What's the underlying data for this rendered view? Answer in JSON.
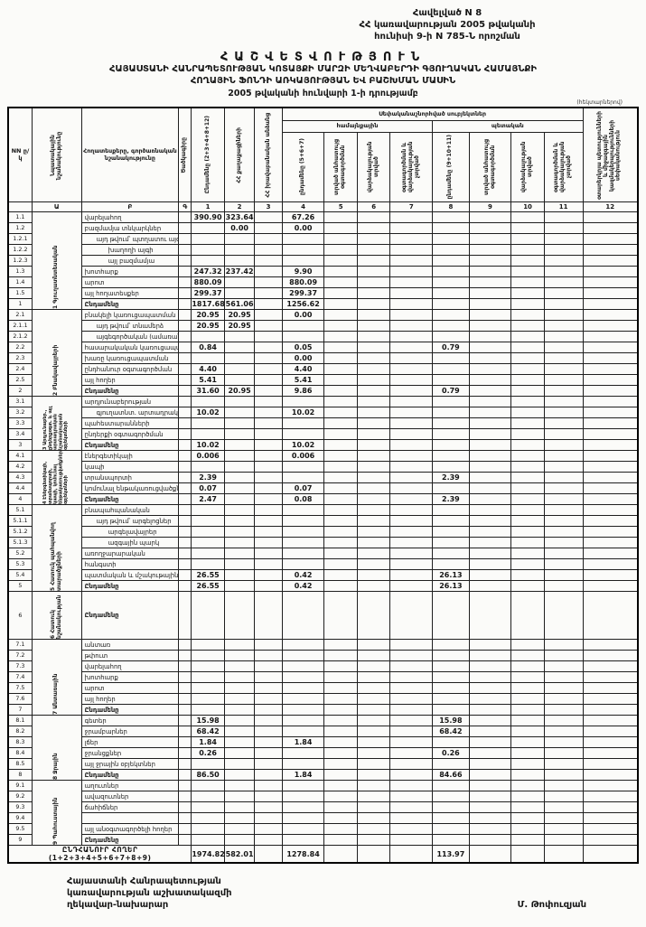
{
  "page": {
    "corner_note_line1": "Հավելված N 8",
    "corner_note_line2": "ՀՀ կառավարության 2005 թվականի",
    "corner_note_line3": "հունիսի 9-ի N 785-Ն որոշման",
    "title": "ՀԱՇՎԵՏՎՈՒԹՅՈՒՆ",
    "subtitle_line1": "ՀԱՅԱՍՏԱՆԻ ՀԱՆՐԱՊԵՏՈՒԹՅԱՆ ԿՈՏԱՅՔԻ ՄԱՐԶԻ ՄԵՂՎԱԲԵՐԴԻ ԳՅՈՒՂԱԿԱՆ ՀԱՄԱՅՆՔԻ",
    "subtitle_line2": "ՀՈՂԱՅԻՆ ՖՈՆԴԻ ԱՌԿԱՅՈՒԹՅԱՆ ԵՎ ԲԱՇԽՄԱՆ ՄԱՍԻՆ",
    "as_of": "2005 թվականի հունվարի 1-ի դրությամբ",
    "units_note": "(հեկտարներով)"
  },
  "table": {
    "header": {
      "nn": "NN ը/կ",
      "purpose": "Նպատակային նշանակությունը",
      "landtype": "Հողատեսքերը, գործառնական նշանակությունը",
      "code": "Ծածկագիրը",
      "c1": "Ընդամենը (2+3+4+8+12)",
      "c2": "ՀՀ քաղաքացիների",
      "c3": "ՀՀ իրավաբանական անձանց",
      "banner": "Սեփականաշնորհված սուբյեկտներ",
      "community": "համայնքային",
      "state": "պետական",
      "c4": "ընդամենը (5+6+7)",
      "c5": "տրված անհատույց օգտագործման",
      "c6": "վարձակալության տրված",
      "c7": "օգտագործման և վարձակալության չտրված",
      "c8": "ընդամենը (9+10+11)",
      "c9": "տրված անհատույց օգտագործման",
      "c10": "վարձակալության տրված",
      "c11": "օգտագործման և վարձակալության չտրված",
      "c12": "օտարերկրյա պետությունների և միջազգային կազմակերպությունների սեփականություն"
    },
    "letter_row": [
      "",
      "Ա",
      "Բ",
      "Գ",
      "1",
      "2",
      "3",
      "4",
      "5",
      "6",
      "7",
      "8",
      "9",
      "10",
      "11",
      "12"
    ],
    "sections": [
      {
        "label": "1 Գյուղատնտեսական",
        "rows": [
          {
            "n": "1.1",
            "label": "վարելահող",
            "v": [
              "390.90",
              "323.64",
              "",
              "67.26"
            ]
          },
          {
            "n": "1.2",
            "label": "բազմամյա տնկարկներ",
            "v": [
              "",
              "0.00",
              "",
              "0.00"
            ]
          },
          {
            "n": "1.2.1",
            "label": "այդ թվում՝ պտղատու այգի",
            "ind": 1
          },
          {
            "n": "1.2.2",
            "label": "խաղողի այգի",
            "ind": 2
          },
          {
            "n": "1.2.3",
            "label": "այլ բազմամյա",
            "ind": 2
          },
          {
            "n": "1.3",
            "label": "խոտհարք",
            "v": [
              "247.32",
              "237.42",
              "",
              "9.90"
            ]
          },
          {
            "n": "1.4",
            "label": "արոտ",
            "v": [
              "880.09",
              "",
              "",
              "880.09"
            ]
          },
          {
            "n": "1.5",
            "label": "այլ հողատեսքեր",
            "v": [
              "299.37",
              "",
              "",
              "299.37"
            ]
          },
          {
            "n": "1",
            "label": "Ընդամենը",
            "total": true,
            "v": [
              "1817.68",
              "561.06",
              "",
              "1256.62"
            ]
          }
        ]
      },
      {
        "label": "2 Բնակավայրերի",
        "rows": [
          {
            "n": "2.1",
            "label": "բնակելի կառուցապատման",
            "v": [
              "20.95",
              "20.95",
              "",
              "0.00"
            ]
          },
          {
            "n": "2.1.1",
            "label": "այդ թվում՝ տնամերձ",
            "ind": 1,
            "v": [
              "20.95",
              "20.95"
            ]
          },
          {
            "n": "2.1.2",
            "label": "այգեգործական (ամառանոց)",
            "ind": 1
          },
          {
            "n": "2.2",
            "label": "հասարակական կառուցապատման",
            "v": [
              "0.84",
              "",
              "",
              "0.05",
              "",
              "",
              "",
              "0.79"
            ]
          },
          {
            "n": "2.3",
            "label": "խառը կառուցապատման",
            "v": [
              "",
              "",
              "",
              "0.00"
            ]
          },
          {
            "n": "2.4",
            "label": "ընդհանուր օգտագործման",
            "v": [
              "4.40",
              "",
              "",
              "4.40"
            ]
          },
          {
            "n": "2.5",
            "label": "այլ հողեր",
            "v": [
              "5.41",
              "",
              "",
              "5.41"
            ]
          },
          {
            "n": "2",
            "label": "Ընդամենը",
            "total": true,
            "v": [
              "31.60",
              "20.95",
              "",
              "9.86",
              "",
              "",
              "",
              "0.79"
            ]
          }
        ]
      },
      {
        "label": "3 Արդյունաբեր., ընդերքօգտ. և այլ արտադրական նշանակության օբյեկտների",
        "rows": [
          {
            "n": "3.1",
            "label": "արդյունաբերության"
          },
          {
            "n": "3.2",
            "label": "գյուղատնտ. արտադրական",
            "ind": 1,
            "v": [
              "10.02",
              "",
              "",
              "10.02"
            ]
          },
          {
            "n": "3.3",
            "label": "պահեստարանների"
          },
          {
            "n": "3.4",
            "label": "ընդերքի օգտագործման"
          },
          {
            "n": "3",
            "label": "Ընդամենը",
            "total": true,
            "v": [
              "10.02",
              "",
              "",
              "10.02"
            ]
          }
        ]
      },
      {
        "label": "4 Էներգետիկայի, տրանսպորտի, կապի, կոմունալ ենթակառուցվածքների օբյեկտների",
        "rows": [
          {
            "n": "4.1",
            "label": "էներգետիկայի",
            "v": [
              "0.006",
              "",
              "",
              "0.006"
            ]
          },
          {
            "n": "4.2",
            "label": "կապի"
          },
          {
            "n": "4.3",
            "label": "տրանսպորտի",
            "v": [
              "2.39",
              "",
              "",
              "",
              "",
              "",
              "",
              "2.39"
            ]
          },
          {
            "n": "4.4",
            "label": "կոմունալ ենթակառուցվածքների",
            "v": [
              "0.07",
              "",
              "",
              "0.07"
            ]
          },
          {
            "n": "4",
            "label": "Ընդամենը",
            "total": true,
            "v": [
              "2.47",
              "",
              "",
              "0.08",
              "",
              "",
              "",
              "2.39"
            ]
          }
        ]
      },
      {
        "label": "5 Հատուկ պահպանվող տարածքների",
        "rows": [
          {
            "n": "5.1",
            "label": "բնապահպանական"
          },
          {
            "n": "5.1.1",
            "label": "այդ թվում՝ արգելոցներ",
            "ind": 1
          },
          {
            "n": "5.1.2",
            "label": "արգելավայրեր",
            "ind": 2
          },
          {
            "n": "5.1.3",
            "label": "ազգային պարկ",
            "ind": 2
          },
          {
            "n": "5.2",
            "label": "առողջարարական"
          },
          {
            "n": "5.3",
            "label": "հանգստի"
          },
          {
            "n": "5.4",
            "label": "պատմական և մշակութային",
            "v": [
              "26.55",
              "",
              "",
              "0.42",
              "",
              "",
              "",
              "26.13"
            ]
          },
          {
            "n": "5",
            "label": "Ընդամենը",
            "total": true,
            "v": [
              "26.55",
              "",
              "",
              "0.42",
              "",
              "",
              "",
              "26.13"
            ]
          }
        ]
      },
      {
        "label": "6 Հատուկ նշանակության",
        "tall": true,
        "rows": [
          {
            "n": "6",
            "label": "Ընդամենը",
            "total": true
          }
        ]
      },
      {
        "label": "7 Անտառային",
        "rows": [
          {
            "n": "7.1",
            "label": "անտառ"
          },
          {
            "n": "7.2",
            "label": "թփուտ"
          },
          {
            "n": "7.3",
            "label": "վարելահող"
          },
          {
            "n": "7.4",
            "label": "խոտհարք"
          },
          {
            "n": "7.5",
            "label": "արոտ"
          },
          {
            "n": "7.6",
            "label": "այլ հողեր"
          },
          {
            "n": "7",
            "label": "Ընդամենը",
            "total": true
          }
        ]
      },
      {
        "label": "8 Ջրային",
        "rows": [
          {
            "n": "8.1",
            "label": "գետեր",
            "v": [
              "15.98",
              "",
              "",
              "",
              "",
              "",
              "",
              "15.98"
            ]
          },
          {
            "n": "8.2",
            "label": "ջրամբարներ",
            "v": [
              "68.42",
              "",
              "",
              "",
              "",
              "",
              "",
              "68.42"
            ]
          },
          {
            "n": "8.3",
            "label": "լճեր",
            "v": [
              "1.84",
              "",
              "",
              "1.84"
            ]
          },
          {
            "n": "8.4",
            "label": "ջրանցքներ",
            "v": [
              "0.26",
              "",
              "",
              "",
              "",
              "",
              "",
              "0.26"
            ]
          },
          {
            "n": "8.5",
            "label": "այլ ջրային օբյեկտներ"
          },
          {
            "n": "8",
            "label": "Ընդամենը",
            "total": true,
            "v": [
              "86.50",
              "",
              "",
              "1.84",
              "",
              "",
              "",
              "84.66"
            ]
          }
        ]
      },
      {
        "label": "9 Պահուստային",
        "rows": [
          {
            "n": "9.1",
            "label": "աղուտներ"
          },
          {
            "n": "9.2",
            "label": "ավազուտներ"
          },
          {
            "n": "9.3",
            "label": "ճահիճներ"
          },
          {
            "n": "9.4",
            "label": ""
          },
          {
            "n": "9.5",
            "label": "այլ անօգտագործելի հողեր"
          },
          {
            "n": "9",
            "label": "Ընդամենը",
            "total": true
          }
        ]
      }
    ],
    "grand_total": {
      "label": "ԸՆԴՀԱՆՈՒՐ ՀՈՂԵՐ (1+2+3+4+5+6+7+8+9)",
      "v": [
        "1974.82",
        "582.01",
        "",
        "1278.84",
        "",
        "",
        "",
        "113.97"
      ]
    }
  },
  "footer": {
    "signer_title_line1": "Հայաստանի Հանրապետության",
    "signer_title_line2": "կառավարության աշխատակազմի",
    "signer_title_line3": "ղեկավար-նախարար",
    "signer_name": "Մ. Թոփուզյան"
  }
}
